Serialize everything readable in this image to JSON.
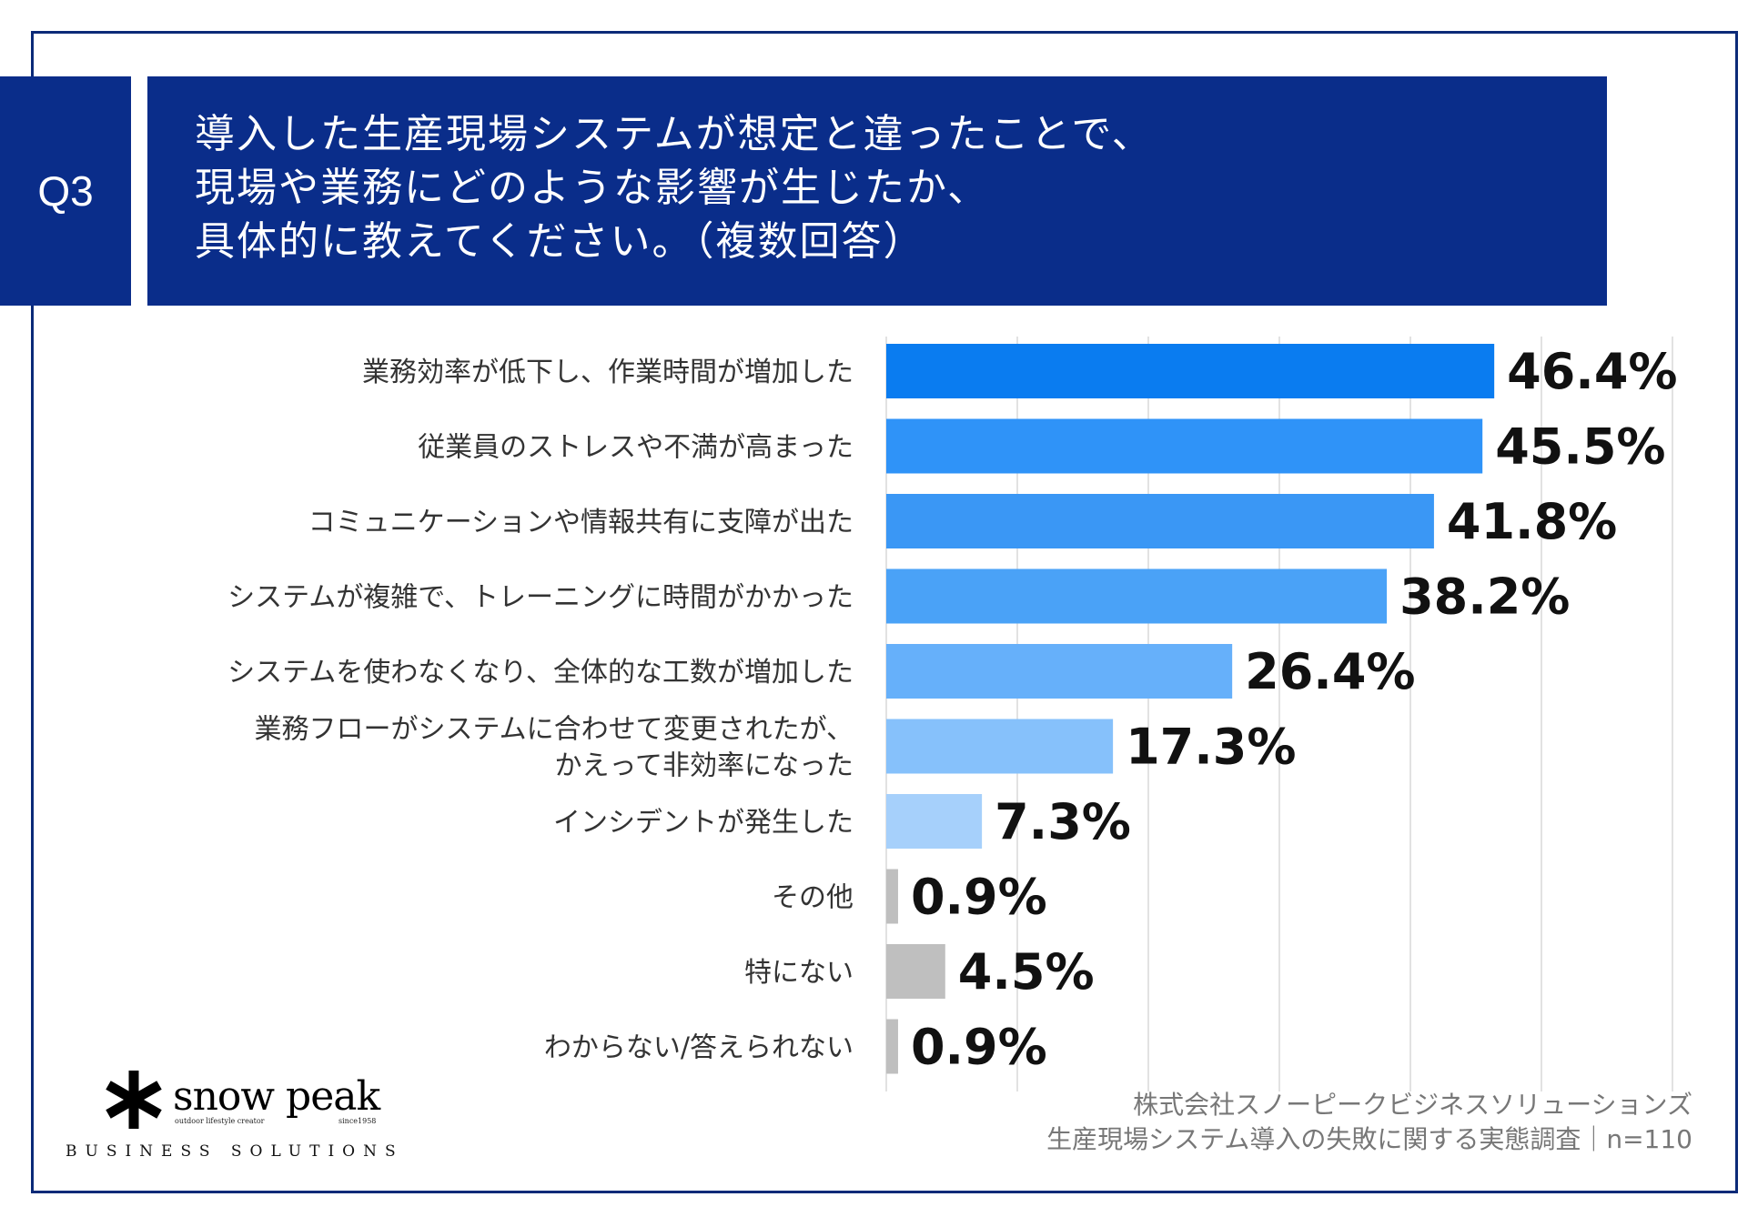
{
  "question": {
    "badge": "Q3",
    "lines": [
      "導入した生産現場システムが想定と違ったことで、",
      "現場や業務にどのような影響が生じたか、",
      "具体的に教えてください。（複数回答）"
    ]
  },
  "chart_data": {
    "type": "bar",
    "orientation": "horizontal",
    "categories": [
      [
        "業務効率が低下し、作業時間が増加した"
      ],
      [
        "従業員のストレスや不満が高まった"
      ],
      [
        "コミュニケーションや情報共有に支障が出た"
      ],
      [
        "システムが複雑で、トレーニングに時間がかかった"
      ],
      [
        "システムを使わなくなり、全体的な工数が増加した"
      ],
      [
        "業務フローがシステムに合わせて変更されたが、",
        "かえって非効率になった"
      ],
      [
        "インシデントが発生した"
      ],
      [
        "その他"
      ],
      [
        "特にない"
      ],
      [
        "わからない/答えられない"
      ]
    ],
    "values": [
      46.4,
      45.5,
      41.8,
      38.2,
      26.4,
      17.3,
      7.3,
      0.9,
      4.5,
      0.9
    ],
    "value_labels": [
      "46.4%",
      "45.5%",
      "41.8%",
      "38.2%",
      "26.4%",
      "17.3%",
      "7.3%",
      "0.9%",
      "4.5%",
      "0.9%"
    ],
    "colors": [
      "#0a7cf0",
      "#2f93f8",
      "#3a97f5",
      "#4aa2f7",
      "#66b0fa",
      "#86c1fb",
      "#a6d0fb",
      "#bfbfbf",
      "#bfbfbf",
      "#bfbfbf"
    ],
    "xlim": [
      0,
      60
    ],
    "grid_step": 10,
    "grid": true,
    "legend": "none"
  },
  "footer": {
    "logo": {
      "wordmark": "snow peak",
      "tagline": "outdoor lifestyle creator",
      "since": "since1958",
      "subtitle": "BUSINESS SOLUTIONS"
    },
    "source_line1": "株式会社スノーピークビジネスソリューションズ",
    "source_line2": "生産現場システム導入の失敗に関する実態調査｜n=110"
  }
}
